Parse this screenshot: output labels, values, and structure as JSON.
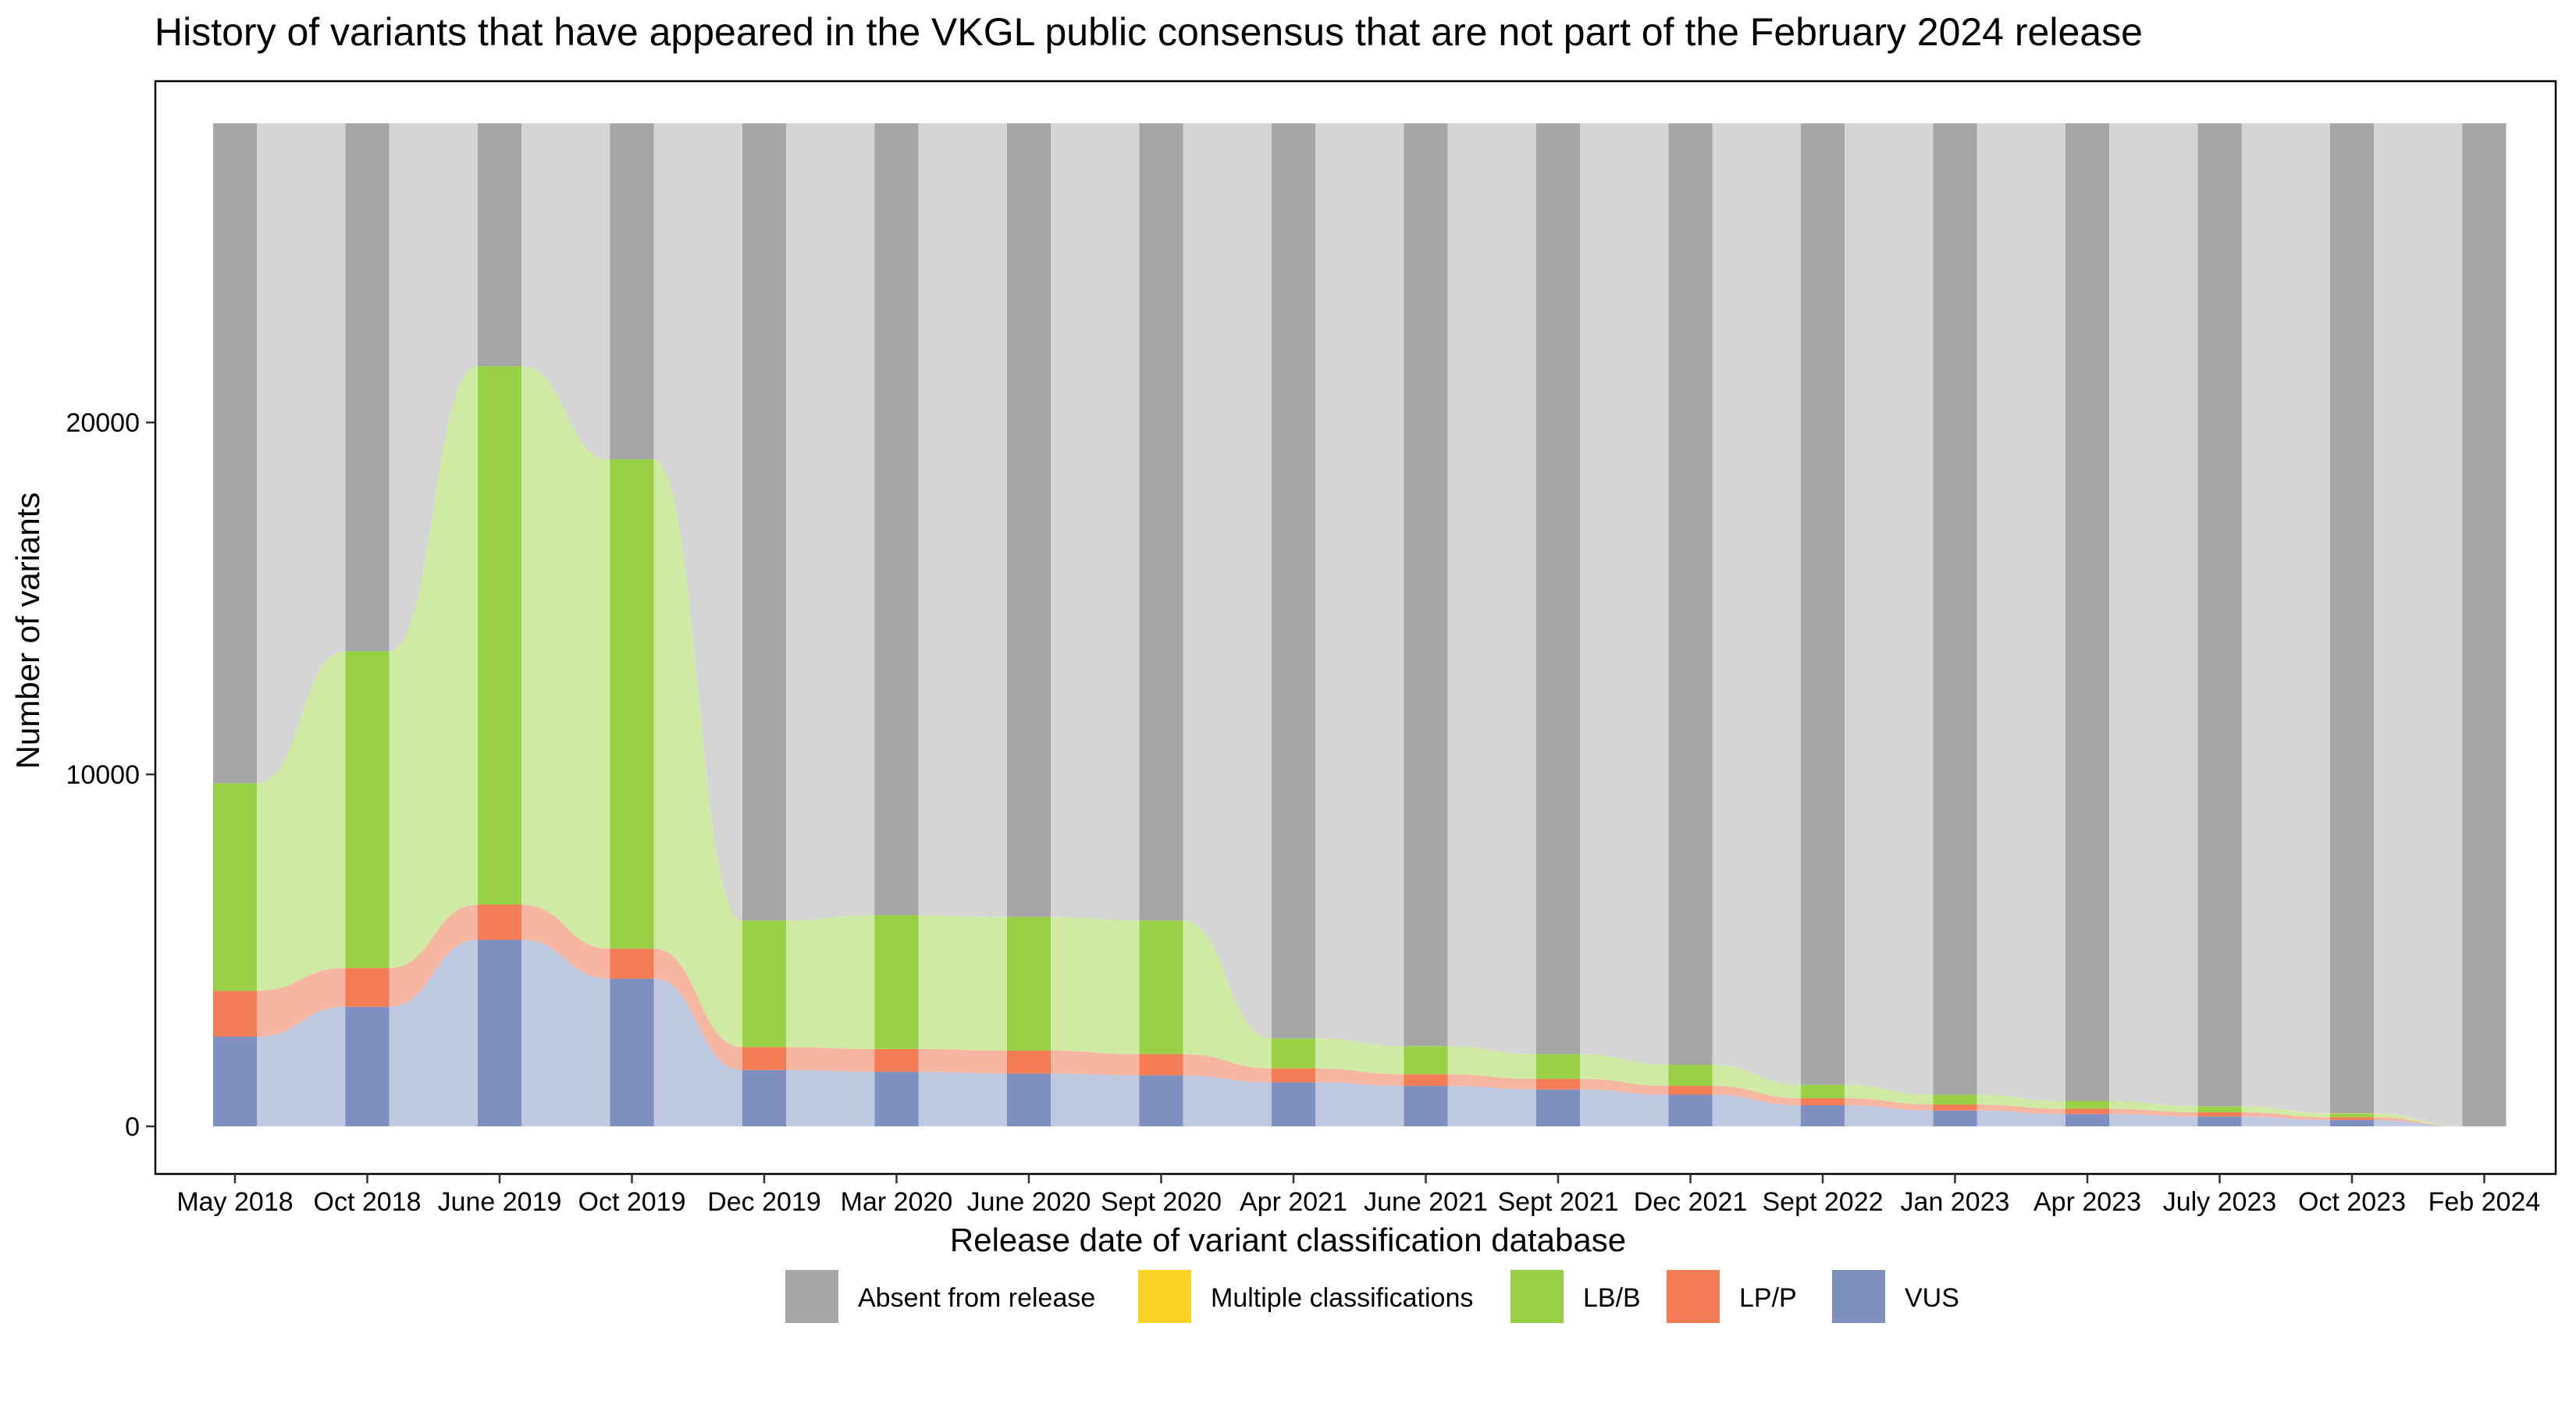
{
  "chart_data": {
    "type": "area",
    "subtype": "alluvial",
    "title": "History of variants that have appeared in the VKGL public consensus that are not part of the February 2024 release",
    "xlabel": "Release date of variant classification database",
    "ylabel": "Number of variants",
    "ylim": [
      0,
      28500
    ],
    "yticks": [
      0,
      10000,
      20000
    ],
    "categories": [
      "May 2018",
      "Oct 2018",
      "June 2019",
      "Oct 2019",
      "Dec 2019",
      "Mar 2020",
      "June 2020",
      "Sept 2020",
      "Apr 2021",
      "June 2021",
      "Sept 2021",
      "Dec 2021",
      "Sept 2022",
      "Jan 2023",
      "Apr 2023",
      "July 2023",
      "Oct 2023",
      "Feb 2024"
    ],
    "series": [
      {
        "name": "VUS",
        "color": "#7f8fc0",
        "flow_color": "#bcc5df",
        "values": [
          2550,
          3400,
          5300,
          4200,
          1600,
          1550,
          1500,
          1450,
          1250,
          1150,
          1050,
          900,
          600,
          450,
          350,
          280,
          180,
          0
        ]
      },
      {
        "name": "LP/P",
        "color": "#f47c54",
        "flow_color": "#f7b29c",
        "values": [
          1300,
          1100,
          1000,
          850,
          650,
          650,
          650,
          600,
          400,
          330,
          300,
          250,
          200,
          170,
          150,
          120,
          80,
          0
        ]
      },
      {
        "name": "LB/B",
        "color": "#98d145",
        "flow_color": "#cce99e",
        "values": [
          5900,
          9000,
          15300,
          13900,
          3600,
          3800,
          3800,
          3800,
          850,
          800,
          700,
          600,
          380,
          280,
          220,
          170,
          100,
          0
        ]
      },
      {
        "name": "Multiple classifications",
        "color": "#fdd426",
        "flow_color": "#fde89a",
        "values": [
          0,
          0,
          0,
          0,
          0,
          0,
          0,
          0,
          0,
          0,
          0,
          0,
          0,
          0,
          0,
          0,
          10,
          0
        ]
      },
      {
        "name": "Absent from release",
        "color": "#a6a6a6",
        "flow_color": "#d3d3d3",
        "values": [
          18750,
          15000,
          6900,
          9550,
          22650,
          22500,
          22550,
          22650,
          26000,
          26220,
          26450,
          26750,
          27320,
          27600,
          27780,
          27930,
          28130,
          28500
        ]
      }
    ],
    "legend": {
      "position": "bottom",
      "entries": [
        "Absent from release",
        "Multiple classifications",
        "LB/B",
        "LP/P",
        "VUS"
      ]
    },
    "grid": false
  }
}
